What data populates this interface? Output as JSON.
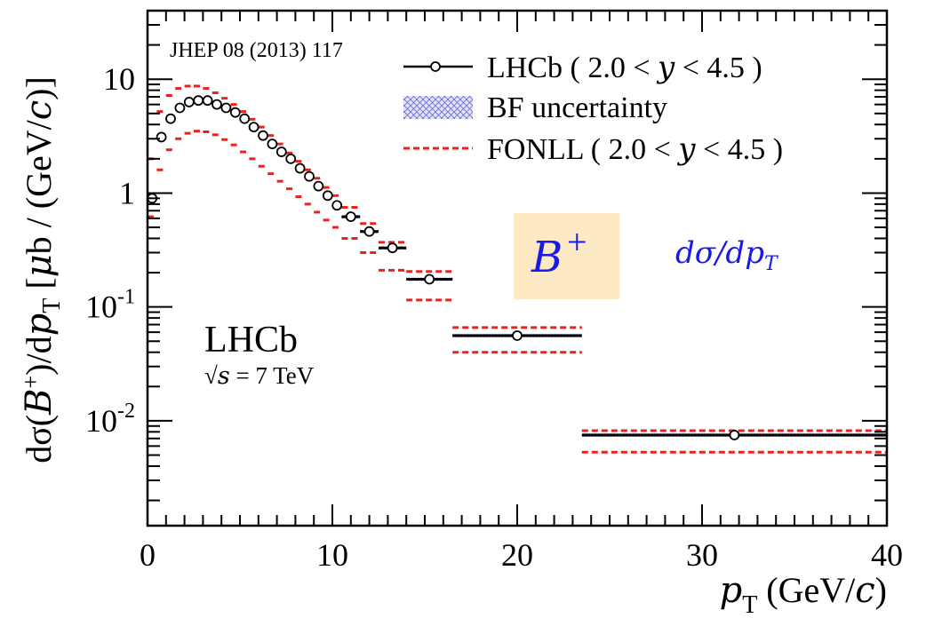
{
  "chart_data": {
    "type": "scatter",
    "reference": "JHEP 08 (2013) 117",
    "xlabel": "p_T (GeV/c)",
    "ylabel": "dσ(B+)/dp_T [μb / (GeV/c)]",
    "xlim": [
      0,
      40
    ],
    "ylim": [
      0.0012,
      40
    ],
    "yscale": "log",
    "x_tick_labels": [
      "0",
      "10",
      "20",
      "30",
      "40"
    ],
    "y_tick_labels": [
      {
        "value": 10,
        "base": "10",
        "exp": ""
      },
      {
        "value": 1,
        "base": "1",
        "exp": ""
      },
      {
        "value": 0.1,
        "base": "10",
        "exp": "-1"
      },
      {
        "value": 0.01,
        "base": "10",
        "exp": "-2"
      }
    ],
    "legend": {
      "position": "top-right",
      "entries": [
        {
          "label": "LHCb ( 2.0 < y < 4.5 )",
          "marker": "open-circle-with-bars"
        },
        {
          "label": "BF uncertainty",
          "marker": "hatched-box"
        },
        {
          "label": "FONLL ( 2.0 < y < 4.5 )",
          "marker": "red-dashed-line"
        }
      ]
    },
    "annotations": {
      "experiment": "LHCb",
      "energy": "√s = 7 TeV",
      "particle": "B+",
      "quantity": "dσ/dp_T"
    },
    "colors": {
      "data": "#000000",
      "fonll": "#e8231e",
      "bf_band": "#7777dd",
      "particle_box": "#fde9c4",
      "quantity_text": "#1a1ae6"
    },
    "series": [
      {
        "name": "LHCb ( 2.0 < y < 4.5 )",
        "points": [
          {
            "x": 0.25,
            "xlo": 0.0,
            "xhi": 0.5,
            "y": 0.9
          },
          {
            "x": 0.75,
            "xlo": 0.5,
            "xhi": 1.0,
            "y": 3.1
          },
          {
            "x": 1.25,
            "xlo": 1.0,
            "xhi": 1.5,
            "y": 4.5
          },
          {
            "x": 1.75,
            "xlo": 1.5,
            "xhi": 2.0,
            "y": 5.6
          },
          {
            "x": 2.25,
            "xlo": 2.0,
            "xhi": 2.5,
            "y": 6.3
          },
          {
            "x": 2.75,
            "xlo": 2.5,
            "xhi": 3.0,
            "y": 6.5
          },
          {
            "x": 3.25,
            "xlo": 3.0,
            "xhi": 3.5,
            "y": 6.5
          },
          {
            "x": 3.75,
            "xlo": 3.5,
            "xhi": 4.0,
            "y": 6.0
          },
          {
            "x": 4.25,
            "xlo": 4.0,
            "xhi": 4.5,
            "y": 5.6
          },
          {
            "x": 4.75,
            "xlo": 4.5,
            "xhi": 5.0,
            "y": 5.1
          },
          {
            "x": 5.25,
            "xlo": 5.0,
            "xhi": 5.5,
            "y": 4.5
          },
          {
            "x": 5.75,
            "xlo": 5.5,
            "xhi": 6.0,
            "y": 3.8
          },
          {
            "x": 6.25,
            "xlo": 6.0,
            "xhi": 6.5,
            "y": 3.2
          },
          {
            "x": 6.75,
            "xlo": 6.5,
            "xhi": 7.0,
            "y": 2.7
          },
          {
            "x": 7.25,
            "xlo": 7.0,
            "xhi": 7.5,
            "y": 2.3
          },
          {
            "x": 7.75,
            "xlo": 7.5,
            "xhi": 8.0,
            "y": 2.0
          },
          {
            "x": 8.25,
            "xlo": 8.0,
            "xhi": 8.5,
            "y": 1.65
          },
          {
            "x": 8.75,
            "xlo": 8.5,
            "xhi": 9.0,
            "y": 1.4
          },
          {
            "x": 9.25,
            "xlo": 9.0,
            "xhi": 9.5,
            "y": 1.15
          },
          {
            "x": 9.75,
            "xlo": 9.5,
            "xhi": 10.0,
            "y": 0.95
          },
          {
            "x": 10.25,
            "xlo": 10.0,
            "xhi": 10.5,
            "y": 0.78
          },
          {
            "x": 11.0,
            "xlo": 10.5,
            "xhi": 11.5,
            "y": 0.62
          },
          {
            "x": 12.0,
            "xlo": 11.5,
            "xhi": 12.5,
            "y": 0.46
          },
          {
            "x": 13.25,
            "xlo": 12.5,
            "xhi": 14.0,
            "y": 0.33
          },
          {
            "x": 15.25,
            "xlo": 14.0,
            "xhi": 16.5,
            "y": 0.175
          },
          {
            "x": 20.0,
            "xlo": 16.5,
            "xhi": 23.5,
            "y": 0.056
          },
          {
            "x": 31.75,
            "xlo": 23.5,
            "xhi": 40.0,
            "y": 0.0075
          }
        ]
      },
      {
        "name": "FONLL ( 2.0 < y < 4.5 ) upper",
        "bins": [
          {
            "xlo": 0.0,
            "xhi": 0.5,
            "y": 2.0
          },
          {
            "xlo": 0.5,
            "xhi": 1.0,
            "y": 5.2
          },
          {
            "xlo": 1.0,
            "xhi": 1.5,
            "y": 7.2
          },
          {
            "xlo": 1.5,
            "xhi": 2.0,
            "y": 8.3
          },
          {
            "xlo": 2.0,
            "xhi": 2.5,
            "y": 8.7
          },
          {
            "xlo": 2.5,
            "xhi": 3.0,
            "y": 8.7
          },
          {
            "xlo": 3.0,
            "xhi": 3.5,
            "y": 8.3
          },
          {
            "xlo": 3.5,
            "xhi": 4.0,
            "y": 7.6
          },
          {
            "xlo": 4.0,
            "xhi": 4.5,
            "y": 6.8
          },
          {
            "xlo": 4.5,
            "xhi": 5.0,
            "y": 6.0
          },
          {
            "xlo": 5.0,
            "xhi": 5.5,
            "y": 5.2
          },
          {
            "xlo": 5.5,
            "xhi": 6.0,
            "y": 4.45
          },
          {
            "xlo": 6.0,
            "xhi": 6.5,
            "y": 3.8
          },
          {
            "xlo": 6.5,
            "xhi": 7.0,
            "y": 3.2
          },
          {
            "xlo": 7.0,
            "xhi": 7.5,
            "y": 2.7
          },
          {
            "xlo": 7.5,
            "xhi": 8.0,
            "y": 2.25
          },
          {
            "xlo": 8.0,
            "xhi": 8.5,
            "y": 1.9
          },
          {
            "xlo": 8.5,
            "xhi": 9.0,
            "y": 1.6
          },
          {
            "xlo": 9.0,
            "xhi": 9.5,
            "y": 1.35
          },
          {
            "xlo": 9.5,
            "xhi": 10.0,
            "y": 1.12
          },
          {
            "xlo": 10.0,
            "xhi": 10.5,
            "y": 0.95
          },
          {
            "xlo": 10.5,
            "xhi": 11.5,
            "y": 0.75
          },
          {
            "xlo": 11.5,
            "xhi": 12.5,
            "y": 0.54
          },
          {
            "xlo": 12.5,
            "xhi": 14.0,
            "y": 0.37
          },
          {
            "xlo": 14.0,
            "xhi": 16.5,
            "y": 0.205
          },
          {
            "xlo": 16.5,
            "xhi": 23.5,
            "y": 0.066
          },
          {
            "xlo": 23.5,
            "xhi": 40.0,
            "y": 0.0082
          }
        ]
      },
      {
        "name": "FONLL ( 2.0 < y < 4.5 ) lower",
        "bins": [
          {
            "xlo": 0.0,
            "xhi": 0.5,
            "y": 0.62
          },
          {
            "xlo": 0.5,
            "xhi": 1.0,
            "y": 1.6
          },
          {
            "xlo": 1.0,
            "xhi": 1.5,
            "y": 2.4
          },
          {
            "xlo": 1.5,
            "xhi": 2.0,
            "y": 3.0
          },
          {
            "xlo": 2.0,
            "xhi": 2.5,
            "y": 3.35
          },
          {
            "xlo": 2.5,
            "xhi": 3.0,
            "y": 3.5
          },
          {
            "xlo": 3.0,
            "xhi": 3.5,
            "y": 3.45
          },
          {
            "xlo": 3.5,
            "xhi": 4.0,
            "y": 3.25
          },
          {
            "xlo": 4.0,
            "xhi": 4.5,
            "y": 2.95
          },
          {
            "xlo": 4.5,
            "xhi": 5.0,
            "y": 2.65
          },
          {
            "xlo": 5.0,
            "xhi": 5.5,
            "y": 2.3
          },
          {
            "xlo": 5.5,
            "xhi": 6.0,
            "y": 2.0
          },
          {
            "xlo": 6.0,
            "xhi": 6.5,
            "y": 1.72
          },
          {
            "xlo": 6.5,
            "xhi": 7.0,
            "y": 1.48
          },
          {
            "xlo": 7.0,
            "xhi": 7.5,
            "y": 1.27
          },
          {
            "xlo": 7.5,
            "xhi": 8.0,
            "y": 1.09
          },
          {
            "xlo": 8.0,
            "xhi": 8.5,
            "y": 0.93
          },
          {
            "xlo": 8.5,
            "xhi": 9.0,
            "y": 0.8
          },
          {
            "xlo": 9.0,
            "xhi": 9.5,
            "y": 0.68
          },
          {
            "xlo": 9.5,
            "xhi": 10.0,
            "y": 0.58
          },
          {
            "xlo": 10.0,
            "xhi": 10.5,
            "y": 0.5
          },
          {
            "xlo": 10.5,
            "xhi": 11.5,
            "y": 0.4
          },
          {
            "xlo": 11.5,
            "xhi": 12.5,
            "y": 0.3
          },
          {
            "xlo": 12.5,
            "xhi": 14.0,
            "y": 0.21
          },
          {
            "xlo": 14.0,
            "xhi": 16.5,
            "y": 0.115
          },
          {
            "xlo": 16.5,
            "xhi": 23.5,
            "y": 0.04
          },
          {
            "xlo": 23.5,
            "xhi": 40.0,
            "y": 0.0053
          }
        ]
      }
    ]
  }
}
